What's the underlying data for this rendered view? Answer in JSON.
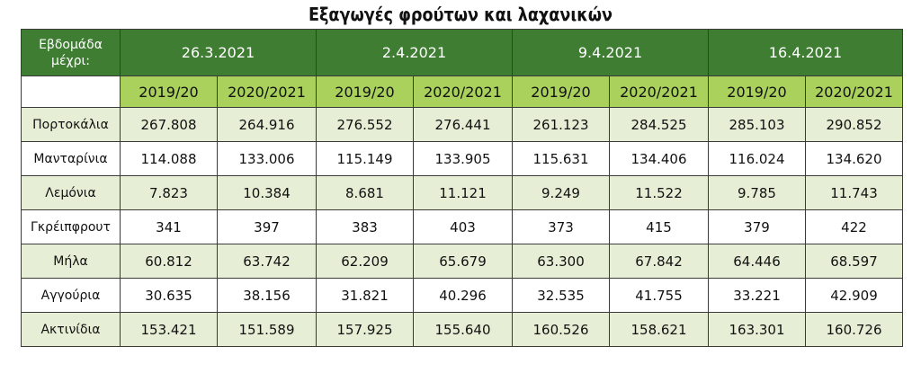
{
  "title": "Εξαγωγές φρούτων και λαχανικών",
  "corner": [
    "Εβδομάδα",
    "μέχρι:"
  ],
  "weeks": [
    "26.3.2021",
    "2.4.2021",
    "9.4.2021",
    "16.4.2021"
  ],
  "seasons": [
    "2019/20",
    "2020/2021"
  ],
  "rows": [
    {
      "label": "Πορτοκάλια",
      "values": [
        "267.808",
        "264.916",
        "276.552",
        "276.441",
        "261.123",
        "284.525",
        "285.103",
        "290.852"
      ]
    },
    {
      "label": "Μανταρίνια",
      "values": [
        "114.088",
        "133.006",
        "115.149",
        "133.905",
        "115.631",
        "134.406",
        "116.024",
        "134.620"
      ]
    },
    {
      "label": "Λεμόνια",
      "values": [
        "7.823",
        "10.384",
        "8.681",
        "11.121",
        "9.249",
        "11.522",
        "9.785",
        "11.743"
      ]
    },
    {
      "label": "Γκρέιπφρουτ",
      "values": [
        "341",
        "397",
        "383",
        "403",
        "373",
        "415",
        "379",
        "422"
      ]
    },
    {
      "label": "Μήλα",
      "values": [
        "60.812",
        "63.742",
        "62.209",
        "65.679",
        "63.300",
        "67.842",
        "64.446",
        "68.597"
      ]
    },
    {
      "label": "Αγγούρια",
      "values": [
        "30.635",
        "38.156",
        "31.821",
        "40.296",
        "32.535",
        "41.755",
        "33.221",
        "42.909"
      ]
    },
    {
      "label": "Ακτινίδια",
      "values": [
        "153.421",
        "151.589",
        "157.925",
        "155.640",
        "160.526",
        "158.621",
        "163.301",
        "160.726"
      ]
    }
  ],
  "colors": {
    "header_dark": "#3f7d33",
    "header_light": "#a9d15c",
    "row_shade": "#e6efd6"
  }
}
